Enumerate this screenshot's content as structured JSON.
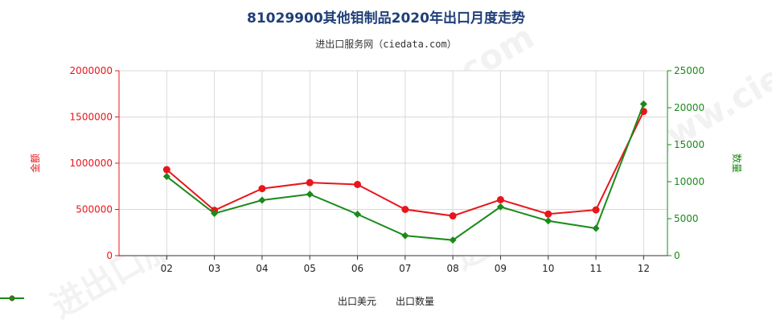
{
  "title": "81029900其他钼制品2020年出口月度走势",
  "subtitle": "进出口服务网（ciedata.com）",
  "watermark": "进出口服务网 www.ciedata.com",
  "chart_data": {
    "type": "line",
    "categories": [
      "02",
      "03",
      "04",
      "05",
      "06",
      "07",
      "08",
      "09",
      "10",
      "11",
      "12"
    ],
    "series": [
      {
        "name": "出口美元",
        "axis": "left",
        "color": "#e8161c",
        "values": [
          930000,
          490000,
          725000,
          790000,
          770000,
          500000,
          430000,
          605000,
          450000,
          495000,
          1560000
        ]
      },
      {
        "name": "出口数量",
        "axis": "right",
        "color": "#1a8a1a",
        "values": [
          10700,
          5700,
          7500,
          8300,
          5600,
          2700,
          2100,
          6600,
          4700,
          3700,
          20500
        ]
      }
    ],
    "ylabel_left": "金额",
    "ylabel_right": "数量",
    "ylim_left": [
      0,
      2000000
    ],
    "ylim_right": [
      0,
      25000
    ],
    "yticks_left": [
      "0",
      "500000",
      "1000000",
      "1500000",
      "2000000"
    ],
    "yticks_right": [
      "0",
      "5000",
      "10000",
      "15000",
      "20000",
      "25000"
    ],
    "grid": true,
    "legend_position": "bottom"
  }
}
